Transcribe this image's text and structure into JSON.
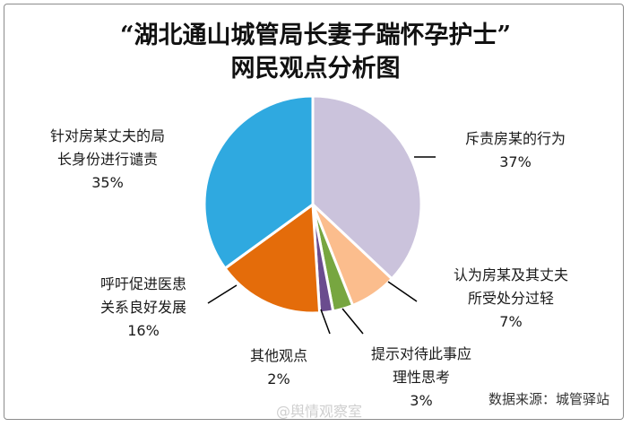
{
  "chart_data": {
    "type": "pie",
    "title": "“湖北通山城管局长妻子踹怀孕护士”",
    "subtitle": "网民观点分析图",
    "slices": [
      {
        "label_lines": [
          "斥责房某的行为"
        ],
        "value": 37,
        "value_label": "37%",
        "color": "#cbc3dc"
      },
      {
        "label_lines": [
          "认为房某及其丈夫",
          "所受处分过轻"
        ],
        "value": 7,
        "value_label": "7%",
        "color": "#fbbd8d"
      },
      {
        "label_lines": [
          "提示对待此事应",
          "理性思考"
        ],
        "value": 3,
        "value_label": "3%",
        "color": "#77a640"
      },
      {
        "label_lines": [
          "其他观点"
        ],
        "value": 2,
        "value_label": "2%",
        "color": "#6a4c8e"
      },
      {
        "label_lines": [
          "呼吁促进医患",
          "关系良好发展"
        ],
        "value": 16,
        "value_label": "16%",
        "color": "#e46c0a"
      },
      {
        "label_lines": [
          "针对房某丈夫的局",
          "长身份进行谴责"
        ],
        "value": 35,
        "value_label": "35%",
        "color": "#2fa9e0"
      }
    ],
    "legend": "none",
    "labels": "outside with leader lines"
  },
  "watermarks": {
    "center": "@舆情观察室",
    "right": "数据来源：城管驿站"
  }
}
